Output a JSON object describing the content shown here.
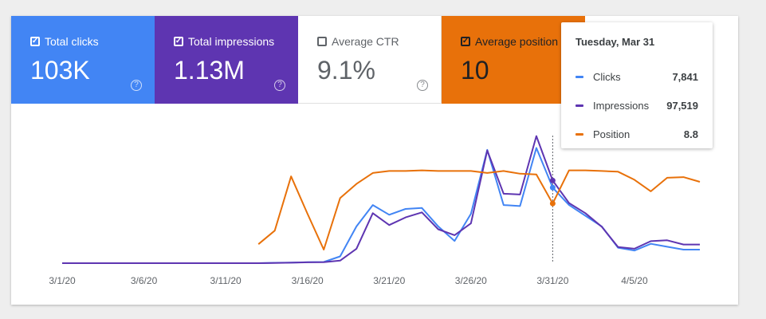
{
  "metrics": {
    "clicks": {
      "label": "Total clicks",
      "value": "103K",
      "checked": true,
      "color": "#4285f4"
    },
    "impressions": {
      "label": "Total impressions",
      "value": "1.13M",
      "checked": true,
      "color": "#5e35b1"
    },
    "ctr": {
      "label": "Average CTR",
      "value": "9.1%",
      "checked": false
    },
    "position": {
      "label": "Average position",
      "value": "10",
      "checked": true,
      "color": "#e8710a"
    },
    "help_glyph": "?"
  },
  "tooltip": {
    "date": "Tuesday, Mar 31",
    "rows": [
      {
        "label": "Clicks",
        "value": "7,841",
        "color": "#4285f4"
      },
      {
        "label": "Impressions",
        "value": "97,519",
        "color": "#5e35b1"
      },
      {
        "label": "Position",
        "value": "8.8",
        "color": "#e8710a"
      }
    ]
  },
  "chart_data": {
    "type": "line",
    "x": [
      "3/1/20",
      "3/2/20",
      "3/3/20",
      "3/4/20",
      "3/5/20",
      "3/6/20",
      "3/7/20",
      "3/8/20",
      "3/9/20",
      "3/10/20",
      "3/11/20",
      "3/12/20",
      "3/13/20",
      "3/14/20",
      "3/15/20",
      "3/16/20",
      "3/17/20",
      "3/18/20",
      "3/19/20",
      "3/20/20",
      "3/21/20",
      "3/22/20",
      "3/23/20",
      "3/24/20",
      "3/25/20",
      "3/26/20",
      "3/27/20",
      "3/28/20",
      "3/29/20",
      "3/30/20",
      "3/31/20",
      "4/1/20",
      "4/2/20",
      "4/3/20",
      "4/4/20",
      "4/5/20",
      "4/6/20",
      "4/7/20",
      "4/8/20",
      "4/9/20"
    ],
    "tick_labels": [
      "3/1/20",
      "3/6/20",
      "3/11/20",
      "3/16/20",
      "3/21/20",
      "3/26/20",
      "3/31/20",
      "4/5/20"
    ],
    "tick_indices": [
      0,
      5,
      10,
      15,
      20,
      25,
      30,
      35
    ],
    "highlight_index": 30,
    "series": [
      {
        "name": "Clicks",
        "color": "#4285f4",
        "scale": [
          0,
          14000
        ],
        "values": [
          0,
          0,
          0,
          0,
          0,
          0,
          0,
          0,
          0,
          0,
          0,
          0,
          0,
          40,
          60,
          100,
          120,
          700,
          3800,
          6000,
          5000,
          5600,
          5700,
          3800,
          2300,
          5100,
          11700,
          6000,
          5900,
          11900,
          7800,
          6000,
          4900,
          3800,
          1600,
          1300,
          2000,
          1700,
          1400,
          1400
        ]
      },
      {
        "name": "Impressions",
        "color": "#5e35b1",
        "scale": [
          0,
          160000
        ],
        "values": [
          0,
          0,
          0,
          0,
          0,
          0,
          0,
          0,
          0,
          0,
          0,
          0,
          0,
          200,
          600,
          1000,
          1200,
          3000,
          17000,
          59000,
          45000,
          54000,
          60000,
          40000,
          33000,
          47000,
          133000,
          82000,
          81000,
          150000,
          97519,
          71000,
          59000,
          43000,
          19000,
          17000,
          26000,
          27000,
          22000,
          22000
        ]
      },
      {
        "name": "Position",
        "color": "#e8710a",
        "scale": [
          0,
          20
        ],
        "values": [
          null,
          null,
          null,
          null,
          null,
          null,
          null,
          null,
          null,
          null,
          null,
          null,
          2.8,
          4.8,
          12.8,
          7.3,
          2.0,
          9.6,
          11.7,
          13.3,
          13.6,
          13.6,
          13.7,
          13.6,
          13.6,
          13.6,
          13.3,
          13.6,
          13.2,
          13.1,
          8.8,
          13.7,
          13.7,
          13.6,
          13.5,
          12.3,
          10.6,
          12.6,
          12.7,
          12.0
        ]
      }
    ]
  }
}
